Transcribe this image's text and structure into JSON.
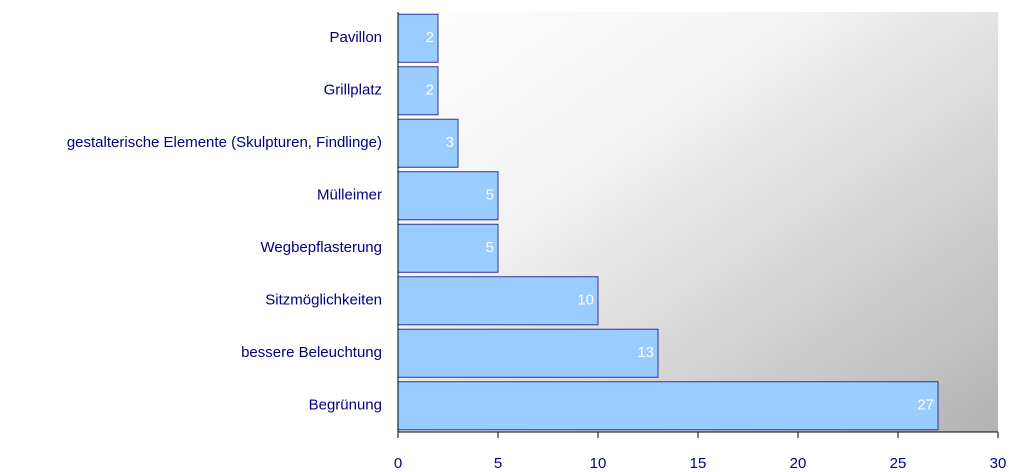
{
  "chart_data": {
    "type": "bar",
    "orientation": "horizontal",
    "categories": [
      "Pavillon",
      "Grillplatz",
      "gestalterische Elemente (Skulpturen, Findlinge)",
      "Mülleimer",
      "Wegbepflasterung",
      "Sitzmöglichkeiten",
      "bessere Beleuchtung",
      "Begrünung"
    ],
    "values": [
      2,
      2,
      3,
      5,
      5,
      10,
      13,
      27
    ],
    "color": "#99ccff",
    "xlim": [
      0,
      30
    ],
    "xticks": [
      0,
      5,
      10,
      15,
      20,
      25,
      30
    ]
  }
}
